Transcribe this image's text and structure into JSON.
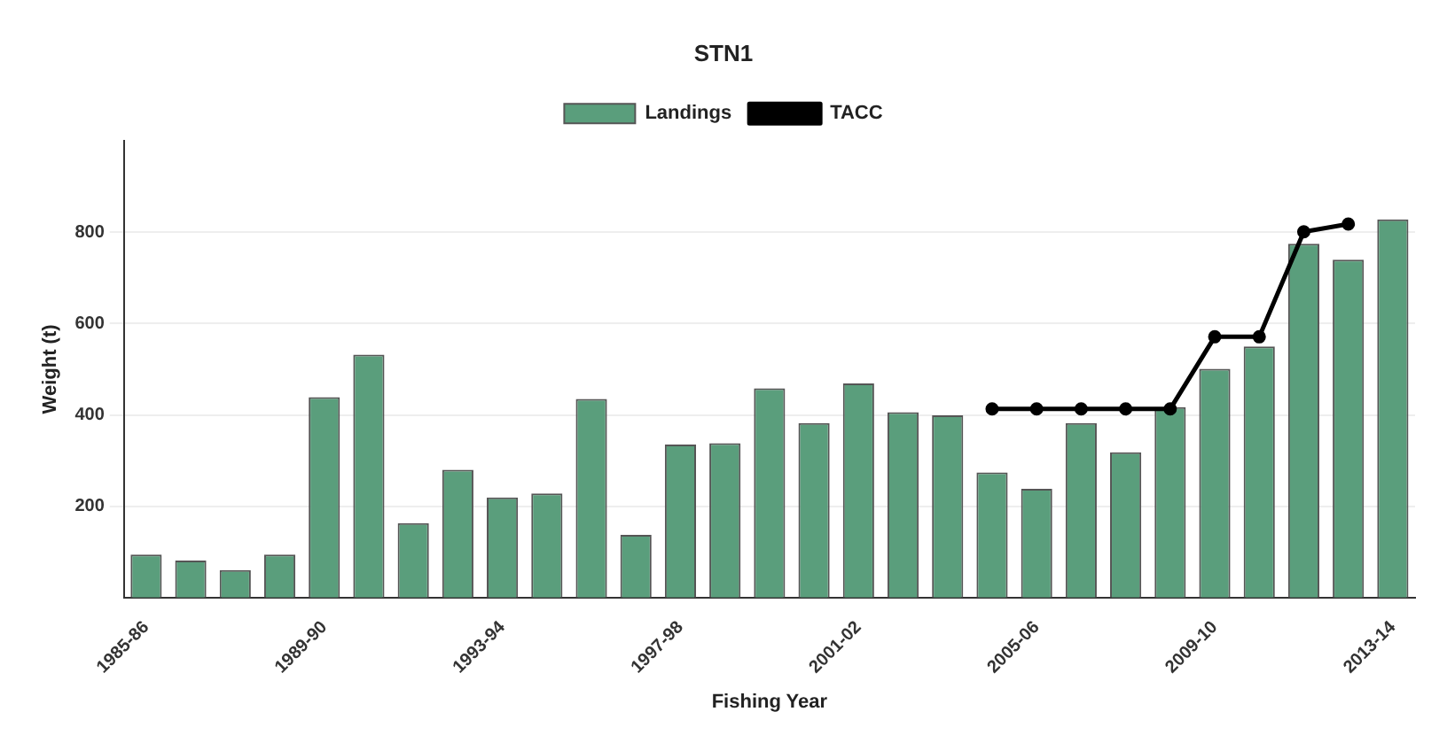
{
  "chart_data": {
    "type": "bar",
    "title": "STN1",
    "xlabel": "Fishing Year",
    "ylabel": "Weight (t)",
    "categories": [
      "1985-86",
      null,
      null,
      null,
      "1989-90",
      null,
      null,
      null,
      "1993-94",
      null,
      null,
      null,
      "1997-98",
      null,
      null,
      null,
      "2001-02",
      null,
      null,
      null,
      "2005-06",
      null,
      null,
      null,
      "2009-10",
      null,
      null,
      null,
      "2013-14"
    ],
    "series": [
      {
        "name": "Landings",
        "color": "#5a9e7c",
        "values": [
          94,
          81,
          60,
          94,
          439,
          532,
          163,
          280,
          219,
          228,
          435,
          137,
          335,
          338,
          458,
          382,
          469,
          406,
          399,
          274,
          238,
          382,
          318,
          417,
          501,
          550,
          775,
          740,
          828
        ]
      },
      {
        "name": "TACC",
        "type": "line",
        "color": "#000000",
        "values": [
          null,
          null,
          null,
          null,
          null,
          null,
          null,
          null,
          null,
          null,
          null,
          null,
          null,
          null,
          null,
          null,
          null,
          null,
          null,
          413,
          413,
          413,
          413,
          413,
          571,
          571,
          801,
          818,
          null
        ]
      }
    ],
    "ylim": [
      0,
      1000
    ],
    "yticks": [
      200,
      400,
      600,
      800
    ],
    "grid": "y",
    "legend": "top",
    "marker": "circle"
  }
}
